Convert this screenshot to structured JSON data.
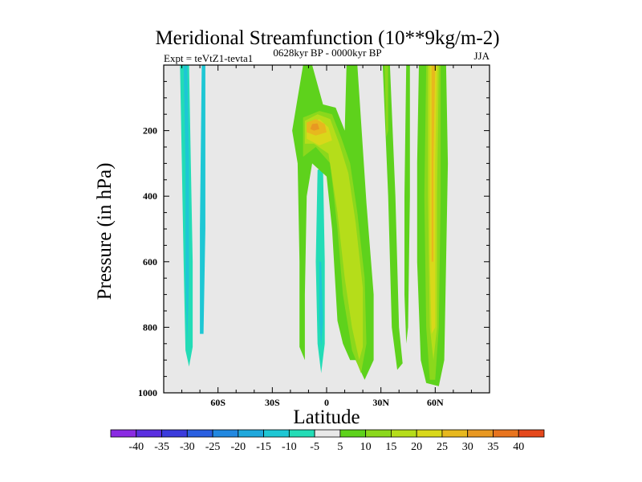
{
  "chart_data": {
    "type": "heatmap",
    "title": "Meridional Streamfunction (10**9kg/m-2)",
    "subtitle_left": "Expt = teVtZ1-tevta1",
    "subtitle_center": "0628kyr BP - 0000kyr BP",
    "subtitle_right": "JJA",
    "xlabel": "Latitude",
    "ylabel": "Pressure (in hPa)",
    "xlim": [
      -90,
      90
    ],
    "ylim": [
      1000,
      0
    ],
    "x_ticks": [
      {
        "value": -60,
        "label": "60S"
      },
      {
        "value": -30,
        "label": "30S"
      },
      {
        "value": 0,
        "label": "0"
      },
      {
        "value": 30,
        "label": "30N"
      },
      {
        "value": 60,
        "label": "60N"
      }
    ],
    "y_ticks": [
      {
        "value": 200,
        "label": "200"
      },
      {
        "value": 400,
        "label": "400"
      },
      {
        "value": 600,
        "label": "600"
      },
      {
        "value": 800,
        "label": "800"
      },
      {
        "value": 1000,
        "label": "1000"
      }
    ],
    "colorbar": {
      "levels": [
        -40,
        -35,
        -30,
        -25,
        -20,
        -15,
        -10,
        -5,
        5,
        10,
        15,
        20,
        25,
        30,
        35,
        40
      ],
      "labels": [
        "-40",
        "-35",
        "-30",
        "-25",
        "-20",
        "-15",
        "-10",
        "-5",
        "5",
        "10",
        "15",
        "20",
        "25",
        "30",
        "35",
        "40"
      ],
      "colors": [
        "#8a2be2",
        "#5a2fe0",
        "#3b3bdc",
        "#2a5fe0",
        "#2288e0",
        "#1fa8dc",
        "#1ec7d4",
        "#23dcb6",
        "#e8e8e8",
        "#5ed21c",
        "#8bd81c",
        "#b5dd1a",
        "#d9d81a",
        "#e7b81e",
        "#e89822",
        "#e8741e",
        "#e5481c"
      ]
    },
    "background_color": "#e8e8e8",
    "contours": [
      {
        "name": "sh-far-negative",
        "color": "#23dcb6",
        "points": [
          [
            -81,
            0
          ],
          [
            -76,
            0
          ],
          [
            -75,
            300
          ],
          [
            -74,
            600
          ],
          [
            -74,
            860
          ],
          [
            -76,
            920
          ],
          [
            -78,
            870
          ],
          [
            -79,
            600
          ],
          [
            -80,
            300
          ]
        ]
      },
      {
        "name": "sh-far-core",
        "color": "#1ec7d4",
        "points": [
          [
            -79,
            0
          ],
          [
            -77,
            0
          ],
          [
            -76,
            300
          ],
          [
            -76,
            650
          ],
          [
            -77,
            850
          ],
          [
            -78,
            650
          ],
          [
            -78,
            300
          ]
        ]
      },
      {
        "name": "sh-strip",
        "color": "#1ec7d4",
        "points": [
          [
            -69,
            0
          ],
          [
            -67,
            0
          ],
          [
            -67,
            500
          ],
          [
            -68,
            820
          ],
          [
            -70,
            820
          ],
          [
            -70,
            500
          ]
        ]
      },
      {
        "name": "tropical-negative",
        "color": "#23dcb6",
        "points": [
          [
            -5,
            320
          ],
          [
            -2,
            310
          ],
          [
            -1,
            600
          ],
          [
            -1,
            850
          ],
          [
            -3,
            940
          ],
          [
            -5,
            850
          ],
          [
            -6,
            600
          ]
        ]
      },
      {
        "name": "tropical-negative-core",
        "color": "#1ec7d4",
        "points": [
          [
            -4,
            600
          ],
          [
            -3,
            600
          ],
          [
            -2,
            780
          ],
          [
            -3,
            860
          ],
          [
            -4,
            780
          ]
        ]
      },
      {
        "name": "eq-band-plus5",
        "color": "#5ed21c",
        "points": [
          [
            -13,
            0
          ],
          [
            -8,
            0
          ],
          [
            -2,
            120
          ],
          [
            5,
            130
          ],
          [
            10,
            200
          ],
          [
            11,
            0
          ],
          [
            17,
            0
          ],
          [
            22,
            420
          ],
          [
            26,
            700
          ],
          [
            26,
            900
          ],
          [
            21,
            960
          ],
          [
            16,
            900
          ],
          [
            13,
            900
          ],
          [
            9,
            850
          ],
          [
            6,
            780
          ],
          [
            3,
            500
          ],
          [
            0,
            340
          ],
          [
            -8,
            300
          ],
          [
            -11,
            400
          ],
          [
            -12,
            700
          ],
          [
            -12,
            900
          ],
          [
            -15,
            860
          ],
          [
            -15,
            600
          ],
          [
            -16,
            300
          ],
          [
            -19,
            200
          ]
        ]
      },
      {
        "name": "eq-band-plus10",
        "color": "#8bd81c",
        "points": [
          [
            -13,
            160
          ],
          [
            -4,
            140
          ],
          [
            3,
            150
          ],
          [
            8,
            220
          ],
          [
            13,
            300
          ],
          [
            17,
            450
          ],
          [
            21,
            650
          ],
          [
            22,
            850
          ],
          [
            19,
            940
          ],
          [
            14,
            870
          ],
          [
            9,
            700
          ],
          [
            6,
            500
          ],
          [
            2,
            300
          ],
          [
            -6,
            250
          ],
          [
            -13,
            280
          ]
        ]
      },
      {
        "name": "eq-band-plus15",
        "color": "#b5dd1a",
        "points": [
          [
            -12,
            170
          ],
          [
            -5,
            150
          ],
          [
            2,
            165
          ],
          [
            7,
            240
          ],
          [
            12,
            330
          ],
          [
            16,
            480
          ],
          [
            20,
            680
          ],
          [
            20,
            860
          ],
          [
            18,
            900
          ],
          [
            14,
            800
          ],
          [
            10,
            650
          ],
          [
            6,
            450
          ],
          [
            1,
            270
          ],
          [
            -7,
            240
          ],
          [
            -12,
            240
          ]
        ]
      },
      {
        "name": "eq-band-plus20",
        "color": "#d9d81a",
        "points": [
          [
            -11,
            180
          ],
          [
            -4,
            165
          ],
          [
            1,
            190
          ],
          [
            3,
            230
          ],
          [
            -4,
            245
          ],
          [
            -11,
            225
          ]
        ]
      },
      {
        "name": "eq-band-plus25",
        "color": "#e7b81e",
        "points": [
          [
            -11,
            175
          ],
          [
            -6,
            165
          ],
          [
            -1,
            180
          ],
          [
            0,
            205
          ],
          [
            -6,
            215
          ],
          [
            -11,
            205
          ]
        ]
      },
      {
        "name": "eq-band-plus30",
        "color": "#e89822",
        "points": [
          [
            -8,
            180
          ],
          [
            -5,
            178
          ],
          [
            -4,
            195
          ],
          [
            -7,
            200
          ],
          [
            -9,
            195
          ]
        ]
      },
      {
        "name": "nh-mid-plus5",
        "color": "#5ed21c",
        "points": [
          [
            31,
            0
          ],
          [
            35,
            0
          ],
          [
            38,
            400
          ],
          [
            40,
            800
          ],
          [
            42,
            910
          ],
          [
            39,
            930
          ],
          [
            36,
            800
          ],
          [
            34,
            400
          ]
        ]
      },
      {
        "name": "nh-mid-inner",
        "color": "#8bd81c",
        "points": [
          [
            32,
            0
          ],
          [
            34,
            0
          ],
          [
            34,
            200
          ],
          [
            33,
            220
          ]
        ]
      },
      {
        "name": "nh-high-plus5",
        "color": "#5ed21c",
        "points": [
          [
            44,
            0
          ],
          [
            46,
            0
          ],
          [
            46,
            400
          ],
          [
            45,
            800
          ],
          [
            44,
            850
          ],
          [
            43,
            700
          ],
          [
            43,
            400
          ]
        ]
      },
      {
        "name": "nh-main-plus5",
        "color": "#5ed21c",
        "points": [
          [
            51,
            0
          ],
          [
            66,
            0
          ],
          [
            67,
            300
          ],
          [
            66,
            600
          ],
          [
            65,
            900
          ],
          [
            62,
            980
          ],
          [
            55,
            970
          ],
          [
            52,
            900
          ],
          [
            50,
            600
          ],
          [
            50,
            300
          ]
        ]
      },
      {
        "name": "nh-main-plus10",
        "color": "#8bd81c",
        "points": [
          [
            55,
            0
          ],
          [
            63,
            0
          ],
          [
            63,
            400
          ],
          [
            62,
            800
          ],
          [
            60,
            960
          ],
          [
            57,
            960
          ],
          [
            55,
            800
          ],
          [
            54,
            400
          ]
        ]
      },
      {
        "name": "nh-main-plus15",
        "color": "#b5dd1a",
        "points": [
          [
            56,
            0
          ],
          [
            62,
            0
          ],
          [
            61,
            400
          ],
          [
            61,
            800
          ],
          [
            59,
            900
          ],
          [
            57,
            800
          ],
          [
            56,
            400
          ]
        ]
      },
      {
        "name": "nh-main-plus20",
        "color": "#d9d81a",
        "points": [
          [
            57,
            0
          ],
          [
            61,
            0
          ],
          [
            60,
            300
          ],
          [
            60,
            800
          ],
          [
            58,
            820
          ],
          [
            57,
            600
          ],
          [
            57,
            300
          ]
        ]
      },
      {
        "name": "nh-main-plus25",
        "color": "#e7b81e",
        "points": [
          [
            58,
            0
          ],
          [
            60,
            0
          ],
          [
            59,
            300
          ],
          [
            59,
            600
          ],
          [
            58,
            600
          ],
          [
            58,
            300
          ]
        ]
      }
    ]
  }
}
